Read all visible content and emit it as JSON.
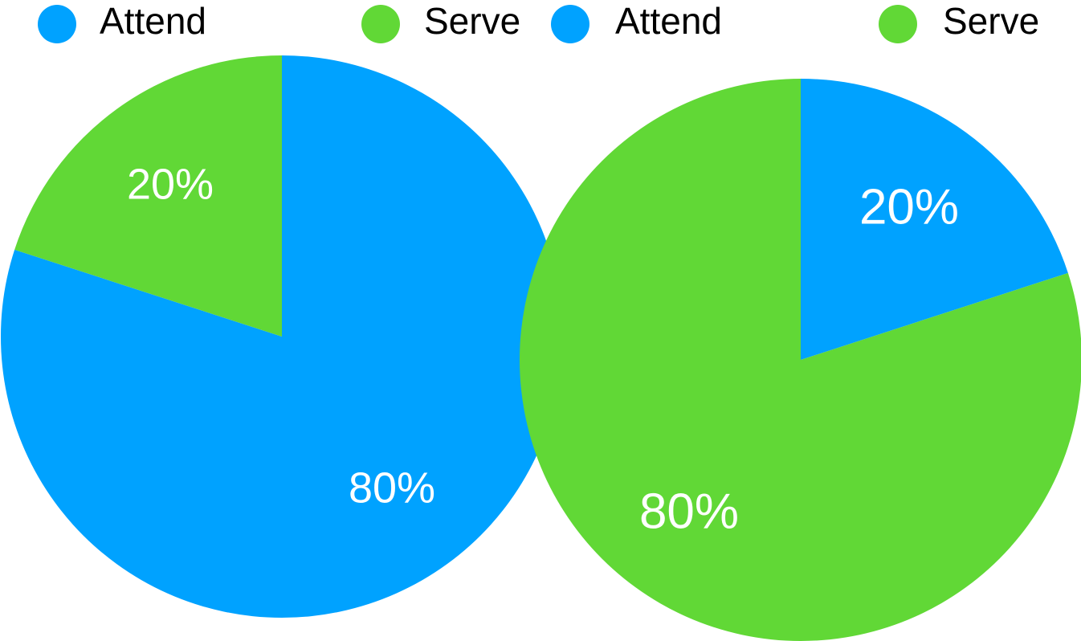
{
  "chart_data": [
    {
      "type": "pie",
      "title": "",
      "legend_position": "top",
      "series": [
        {
          "name": "Attend",
          "value": 80,
          "label": "80%",
          "color": "#00A2FF"
        },
        {
          "name": "Serve",
          "value": 20,
          "label": "20%",
          "color": "#61D836"
        }
      ]
    },
    {
      "type": "pie",
      "title": "",
      "legend_position": "top",
      "series": [
        {
          "name": "Attend",
          "value": 20,
          "label": "20%",
          "color": "#00A2FF"
        },
        {
          "name": "Serve",
          "value": 80,
          "label": "80%",
          "color": "#61D836"
        }
      ]
    }
  ]
}
